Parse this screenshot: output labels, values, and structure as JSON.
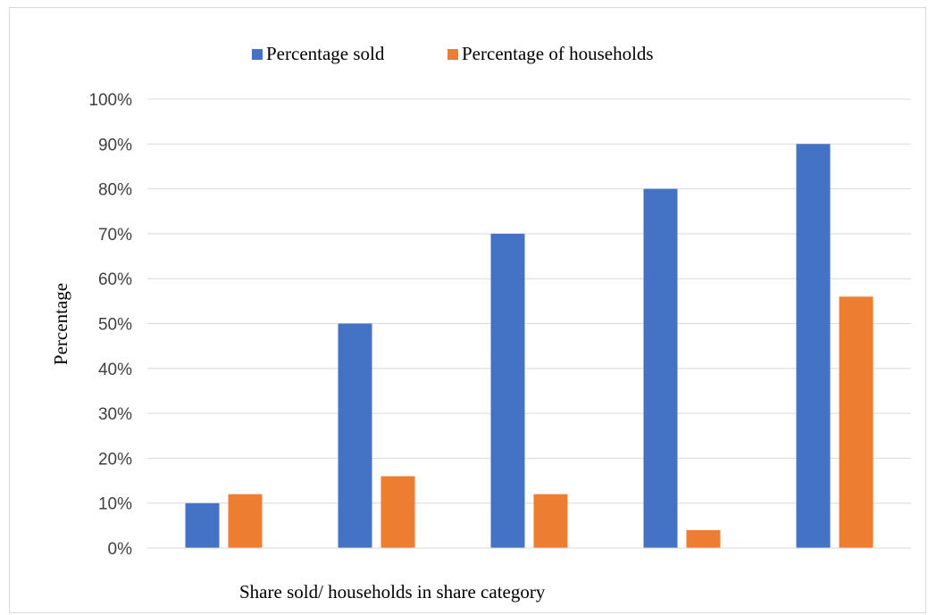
{
  "chart_data": {
    "type": "bar",
    "title": "",
    "xlabel": "Share sold/ households in share category",
    "ylabel": "Percentage",
    "ylim": [
      0,
      100
    ],
    "yticks": [
      "0%",
      "10%",
      "20%",
      "30%",
      "40%",
      "50%",
      "60%",
      "70%",
      "80%",
      "90%",
      "100%"
    ],
    "categories": [
      "",
      "",
      "",
      "",
      ""
    ],
    "series": [
      {
        "name": "Percentage sold",
        "color": "#4472c4",
        "values": [
          10,
          50,
          70,
          80,
          90
        ]
      },
      {
        "name": "Percentage of households",
        "color": "#ed7d31",
        "values": [
          12,
          16,
          12,
          4,
          56
        ]
      }
    ],
    "grid": true,
    "legend": "top-center"
  }
}
